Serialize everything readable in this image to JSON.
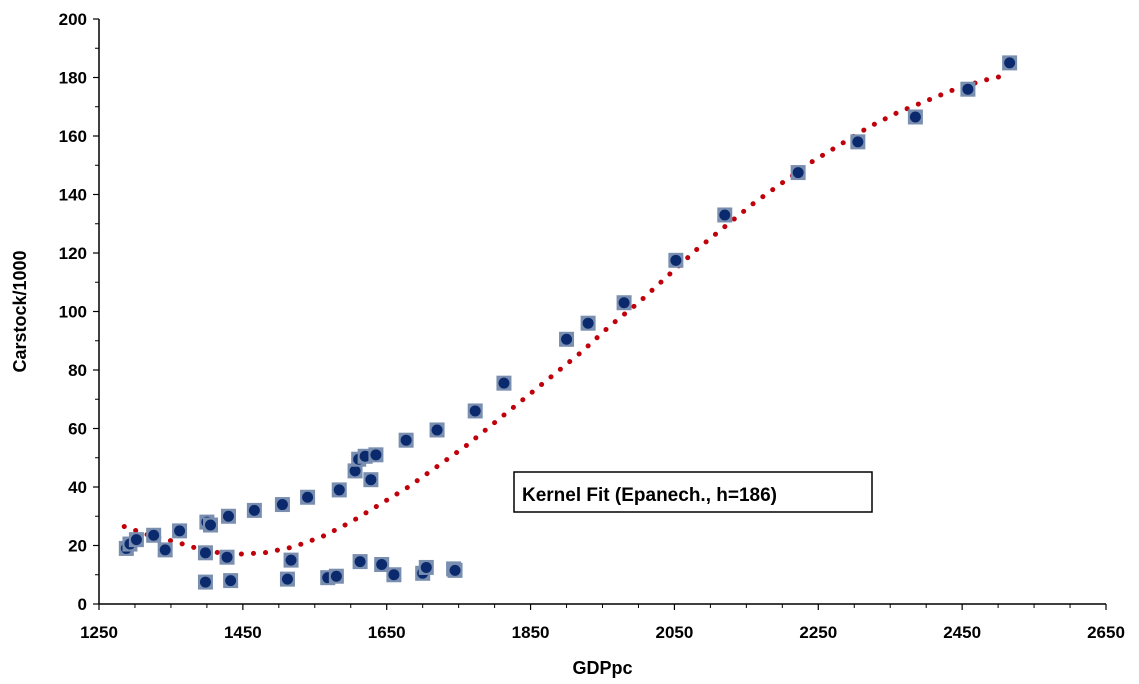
{
  "chart_data": {
    "type": "scatter",
    "title": "",
    "xlabel": "GDPpc",
    "ylabel": "Carstock/1000",
    "xlim": [
      1250,
      2650
    ],
    "ylim": [
      0,
      200
    ],
    "xticks": [
      1250,
      1450,
      1650,
      1850,
      2050,
      2250,
      2450,
      2650
    ],
    "yticks": [
      0,
      20,
      40,
      60,
      80,
      100,
      120,
      140,
      160,
      180,
      200
    ],
    "grid": false,
    "legend": "none",
    "annotation": "Kernel Fit (Epanech., h=186)",
    "series": [
      {
        "kind": "markers",
        "marker_color": "#0b2a6e",
        "marker_box_color": "#7a8fb0",
        "points": [
          [
            1288,
            19
          ],
          [
            1293,
            20.5
          ],
          [
            1302,
            22
          ],
          [
            1326,
            23.5
          ],
          [
            1342,
            18.5
          ],
          [
            1362,
            25
          ],
          [
            1398,
            7.5
          ],
          [
            1398,
            17.5
          ],
          [
            1400,
            28
          ],
          [
            1405,
            27
          ],
          [
            1428,
            16
          ],
          [
            1430,
            30
          ],
          [
            1433,
            8
          ],
          [
            1466,
            32
          ],
          [
            1505,
            34
          ],
          [
            1512,
            8.5
          ],
          [
            1517,
            15
          ],
          [
            1540,
            36.5
          ],
          [
            1568,
            9
          ],
          [
            1580,
            9.5
          ],
          [
            1584,
            39
          ],
          [
            1606,
            45.5
          ],
          [
            1611,
            49.5
          ],
          [
            1613,
            14.5
          ],
          [
            1620,
            50.5
          ],
          [
            1628,
            42.5
          ],
          [
            1635,
            51
          ],
          [
            1643,
            13.5
          ],
          [
            1660,
            10
          ],
          [
            1677,
            56
          ],
          [
            1700,
            10.5
          ],
          [
            1705,
            12.5
          ],
          [
            1720,
            59.5
          ],
          [
            1743,
            12
          ],
          [
            1745,
            11.5
          ],
          [
            1773,
            66
          ],
          [
            1813,
            75.5
          ],
          [
            1900,
            90.5
          ],
          [
            1930,
            96
          ],
          [
            1980,
            103
          ],
          [
            2052,
            117.5
          ],
          [
            2120,
            133
          ],
          [
            2222,
            147.5
          ],
          [
            2305,
            158
          ],
          [
            2385,
            166.5
          ],
          [
            2458,
            176
          ],
          [
            2516,
            185
          ]
        ]
      },
      {
        "kind": "dotted-line",
        "color": "#c0000b",
        "points": [
          [
            1285,
            26.5
          ],
          [
            1320,
            23.5
          ],
          [
            1360,
            21
          ],
          [
            1400,
            18
          ],
          [
            1440,
            17
          ],
          [
            1480,
            17.5
          ],
          [
            1520,
            19.5
          ],
          [
            1560,
            23
          ],
          [
            1600,
            28
          ],
          [
            1640,
            34
          ],
          [
            1680,
            40
          ],
          [
            1720,
            47
          ],
          [
            1760,
            54
          ],
          [
            1800,
            62
          ],
          [
            1840,
            70
          ],
          [
            1880,
            78
          ],
          [
            1920,
            86
          ],
          [
            1960,
            95
          ],
          [
            2000,
            103
          ],
          [
            2040,
            112
          ],
          [
            2080,
            121
          ],
          [
            2120,
            129
          ],
          [
            2160,
            137
          ],
          [
            2200,
            144
          ],
          [
            2240,
            151
          ],
          [
            2280,
            157
          ],
          [
            2320,
            163
          ],
          [
            2360,
            168
          ],
          [
            2400,
            172
          ],
          [
            2440,
            176
          ],
          [
            2480,
            179
          ],
          [
            2515,
            181
          ]
        ]
      }
    ]
  }
}
